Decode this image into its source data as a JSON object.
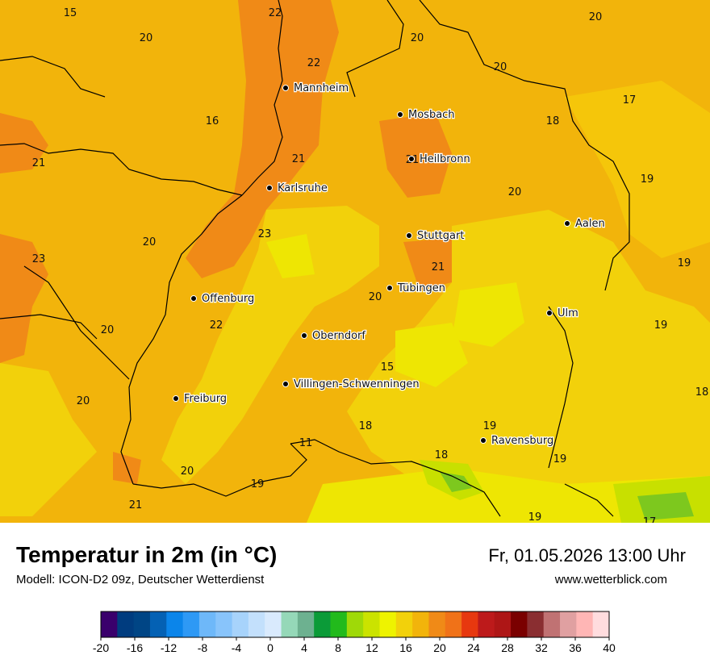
{
  "header": {
    "title": "Temperatur in 2m (in °C)",
    "model": "Modell: ICON-D2 09z, Deutscher Wetterdienst",
    "datetime": "Fr, 01.05.2026 13:00 Uhr",
    "website": "www.wetterblick.com"
  },
  "colors": {
    "orange_dark": "#f08a17",
    "orange": "#f2a20e",
    "yellow_orange": "#f5bd0a",
    "yellow": "#f2d10b",
    "yellow_light": "#eee603",
    "lime": "#c8e000",
    "green": "#7dc81e"
  },
  "cities": [
    {
      "name": "Mannheim"
    },
    {
      "name": "Mosbach"
    },
    {
      "name": "Heilbronn"
    },
    {
      "name": "Karlsruhe"
    },
    {
      "name": "Stuttgart"
    },
    {
      "name": "Aalen"
    },
    {
      "name": "Tübingen"
    },
    {
      "name": "Offenburg"
    },
    {
      "name": "Ulm"
    },
    {
      "name": "Oberndorf"
    },
    {
      "name": "Villingen-Schwenningen"
    },
    {
      "name": "Freiburg"
    },
    {
      "name": "Ravensburg"
    }
  ],
  "temperature_values": [
    "15",
    "22",
    "20",
    "20",
    "22",
    "20",
    "20",
    "16",
    "17",
    "18",
    "21",
    "21",
    "21",
    "19",
    "20",
    "20",
    "23",
    "23",
    "19",
    "21",
    "20",
    "20",
    "22",
    "19",
    "15",
    "20",
    "18",
    "18",
    "19",
    "18",
    "11",
    "19",
    "20",
    "19",
    "21",
    "19",
    "17"
  ],
  "legend": {
    "tick_labels": [
      "-20",
      "-16",
      "-12",
      "-8",
      "-4",
      "0",
      "4",
      "8",
      "12",
      "16",
      "20",
      "24",
      "28",
      "32",
      "36",
      "40"
    ],
    "colors": [
      "#3a006c",
      "#003c7f",
      "#004585",
      "#0461b4",
      "#0b85ea",
      "#2e99f5",
      "#6eb8f9",
      "#88c4fb",
      "#a7d3fb",
      "#c3e0fc",
      "#d9eafd",
      "#95d8b8",
      "#6db190",
      "#0b9b38",
      "#22ba1c",
      "#9fd908",
      "#cbe300",
      "#eef300",
      "#f2d10b",
      "#f2b40b",
      "#f08a17",
      "#f07218",
      "#e7380f",
      "#bd1a1b",
      "#ae1616",
      "#7a0000",
      "#8a2e31",
      "#c07273",
      "#e0a0a1",
      "#ffb6b5",
      "#ffdcde"
    ]
  }
}
